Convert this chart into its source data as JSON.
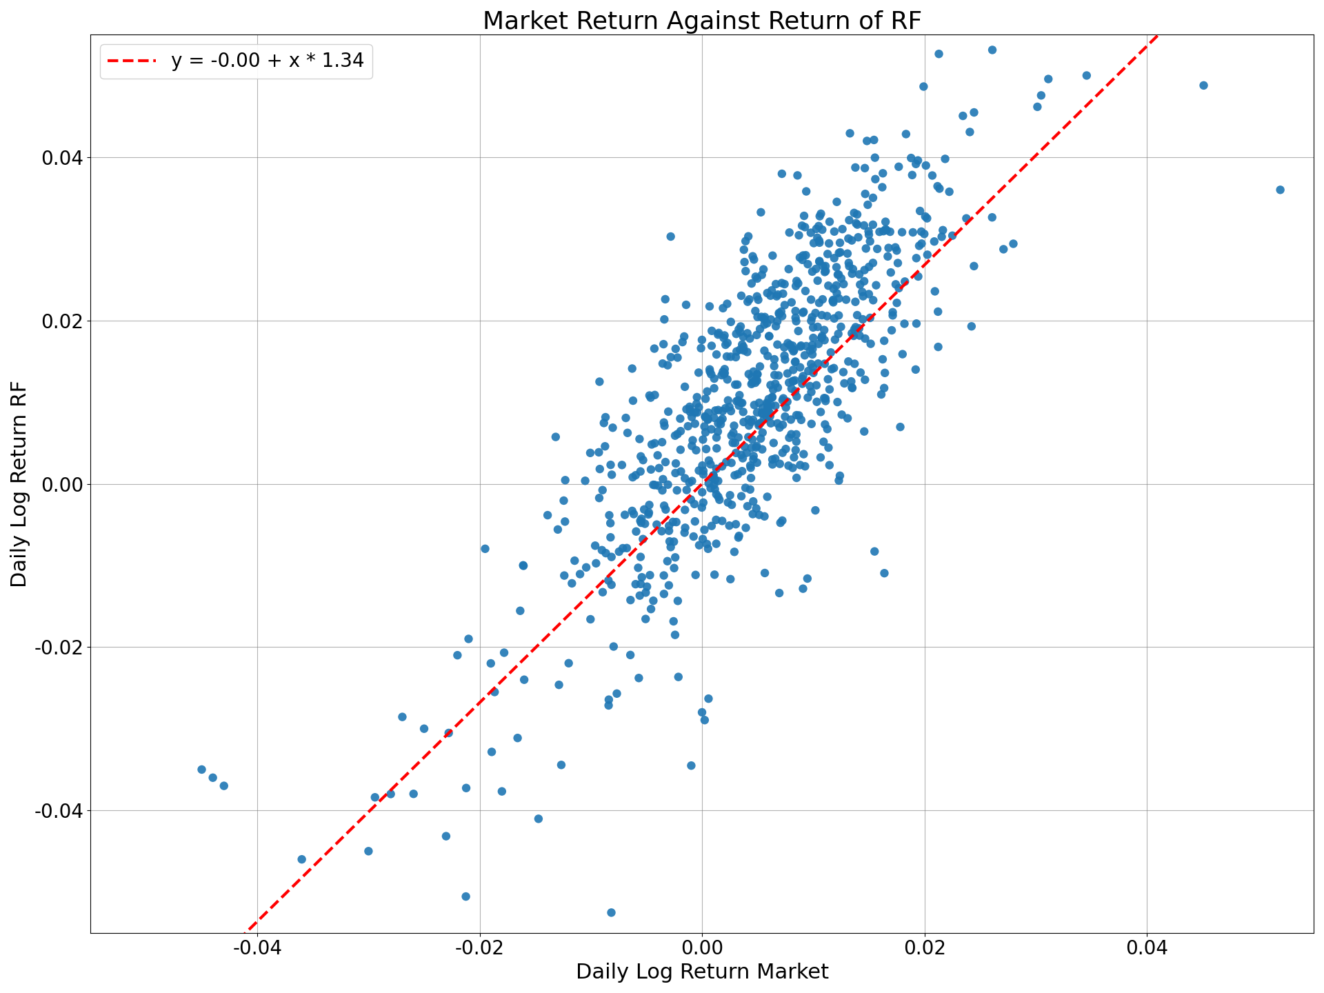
{
  "title": "Market Return Against Return of RF",
  "xlabel": "Daily Log Return Market",
  "ylabel": "Daily Log Return RF",
  "legend_label": "y = -0.00 + x * 1.34",
  "intercept": 0.0,
  "slope": 1.34,
  "scatter_color": "#1f77b4",
  "line_color": "red",
  "line_style": "--",
  "marker_size": 80,
  "alpha": 0.9,
  "xlim": [
    -0.055,
    0.055
  ],
  "ylim": [
    -0.055,
    0.055
  ],
  "xticks": [
    -0.04,
    -0.02,
    0.0,
    0.02,
    0.04
  ],
  "yticks": [
    -0.04,
    -0.02,
    0.0,
    0.02,
    0.04
  ],
  "figsize": [
    19.2,
    14.4
  ],
  "dpi": 100,
  "grid": true,
  "n_core": 700,
  "n_outliers": 100,
  "random_seed": 7
}
